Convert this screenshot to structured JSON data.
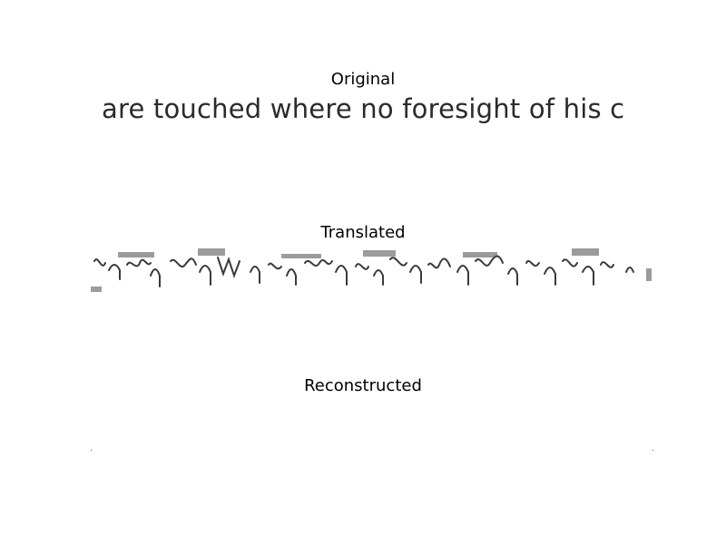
{
  "panels": [
    {
      "title": "Original",
      "text": "are touched where no foresight of his c"
    },
    {
      "title": "Translated"
    },
    {
      "title": "Reconstructed"
    }
  ],
  "colors": {
    "background": "#ffffff",
    "ink": "#2b2b2b",
    "noise": "#4a4a4a"
  }
}
